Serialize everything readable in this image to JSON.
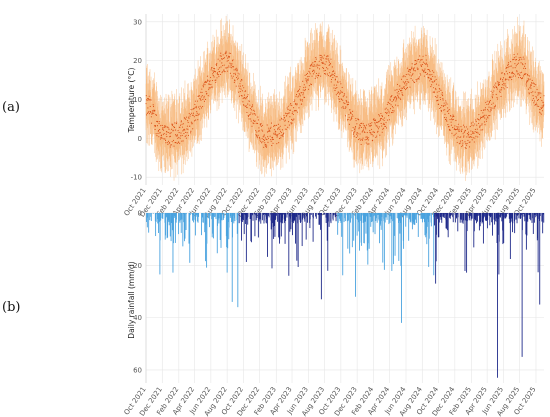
{
  "panel_labels": [
    "(a)",
    "(b)"
  ],
  "colors": {
    "temp_band": "#f7b77a",
    "temp_points": "#d9480f",
    "rain_light": "#4aa3df",
    "rain_dark": "#1f2a8a",
    "grid": "#e6e6e6"
  },
  "chart_data": [
    {
      "type": "scatter",
      "title": "",
      "xlabel": "",
      "ylabel": "Temperature (°C)",
      "ylim": [
        -12,
        32
      ],
      "yticks": [
        -10,
        0,
        10,
        20,
        30
      ],
      "xlim": [
        "2021-10-01",
        "2025-10-31"
      ],
      "xticks": [
        "Oct 2021",
        "Dec 2021",
        "Feb 2022",
        "Apr 2022",
        "Jun 2022",
        "Aug 2022",
        "Oct 2022",
        "Dec 2022",
        "Feb 2023",
        "Apr 2023",
        "Jun 2023",
        "Aug 2023",
        "Oct 2023",
        "Dec 2023",
        "Feb 2024",
        "Apr 2024",
        "Jun 2024",
        "Aug 2024",
        "Oct 2024",
        "Dec 2024",
        "Feb 2025",
        "Apr 2025",
        "Jun 2025",
        "Aug 2025",
        "Oct 2025"
      ],
      "grid": true,
      "series": [
        {
          "style": "daily range band + daily mean points",
          "monthly_mean": [
            [
              "2021-10",
              8
            ],
            [
              "2021-11",
              3
            ],
            [
              "2021-12",
              0
            ],
            [
              "2022-01",
              1
            ],
            [
              "2022-02",
              2
            ],
            [
              "2022-03",
              4
            ],
            [
              "2022-04",
              8
            ],
            [
              "2022-05",
              13
            ],
            [
              "2022-06",
              17
            ],
            [
              "2022-07",
              20
            ],
            [
              "2022-08",
              19
            ],
            [
              "2022-09",
              14
            ],
            [
              "2022-10",
              9
            ],
            [
              "2022-11",
              4
            ],
            [
              "2022-12",
              0
            ],
            [
              "2023-01",
              1
            ],
            [
              "2023-02",
              2
            ],
            [
              "2023-03",
              5
            ],
            [
              "2023-04",
              8
            ],
            [
              "2023-05",
              13
            ],
            [
              "2023-06",
              17
            ],
            [
              "2023-07",
              19
            ],
            [
              "2023-08",
              19
            ],
            [
              "2023-09",
              14
            ],
            [
              "2023-10",
              9
            ],
            [
              "2023-11",
              4
            ],
            [
              "2023-12",
              1
            ],
            [
              "2024-01",
              1
            ],
            [
              "2024-02",
              3
            ],
            [
              "2024-03",
              5
            ],
            [
              "2024-04",
              9
            ],
            [
              "2024-05",
              13
            ],
            [
              "2024-06",
              16
            ],
            [
              "2024-07",
              18
            ],
            [
              "2024-08",
              19
            ],
            [
              "2024-09",
              14
            ],
            [
              "2024-10",
              9
            ],
            [
              "2024-11",
              4
            ],
            [
              "2024-12",
              1
            ],
            [
              "2025-01",
              0
            ],
            [
              "2025-02",
              2
            ],
            [
              "2025-03",
              5
            ],
            [
              "2025-04",
              9
            ],
            [
              "2025-05",
              13
            ],
            [
              "2025-06",
              16
            ],
            [
              "2025-07",
              19
            ],
            [
              "2025-08",
              18
            ],
            [
              "2025-09",
              13
            ],
            [
              "2025-10",
              9
            ]
          ]
        }
      ]
    },
    {
      "type": "bar",
      "title": "",
      "xlabel": "",
      "ylabel": "Daily rainfall (mm/d)",
      "ylim": [
        0,
        65
      ],
      "yticks": [
        0,
        20,
        40,
        60
      ],
      "inverted_y": true,
      "xlim": [
        "2021-10-01",
        "2025-10-31"
      ],
      "xticks": [
        "Oct 2021",
        "Dec 2021",
        "Feb 2022",
        "Apr 2022",
        "Jun 2022",
        "Aug 2022",
        "Oct 2022",
        "Dec 2022",
        "Feb 2023",
        "Apr 2023",
        "Jun 2023",
        "Aug 2023",
        "Oct 2023",
        "Dec 2023",
        "Feb 2024",
        "Apr 2024",
        "Jun 2024",
        "Aug 2024",
        "Oct 2024",
        "Dec 2024",
        "Feb 2025",
        "Apr 2025",
        "Jun 2025",
        "Aug 2025",
        "Oct 2025"
      ],
      "grid": true,
      "periods": [
        {
          "start": "2021-10-01",
          "end": "2022-09-15",
          "color": "light"
        },
        {
          "start": "2022-09-15",
          "end": "2023-09-15",
          "color": "dark"
        },
        {
          "start": "2023-09-15",
          "end": "2024-09-15",
          "color": "light"
        },
        {
          "start": "2024-09-15",
          "end": "2025-10-31",
          "color": "dark"
        }
      ],
      "notable_events": [
        [
          "2022-08-20",
          34
        ],
        [
          "2022-09-10",
          36
        ],
        [
          "2023-03-20",
          24
        ],
        [
          "2023-07-20",
          33
        ],
        [
          "2023-11-25",
          32
        ],
        [
          "2024-05-15",
          42
        ],
        [
          "2024-09-20",
          27
        ],
        [
          "2025-05-10",
          63
        ],
        [
          "2025-08-10",
          55
        ],
        [
          "2025-10-15",
          35
        ]
      ]
    }
  ]
}
